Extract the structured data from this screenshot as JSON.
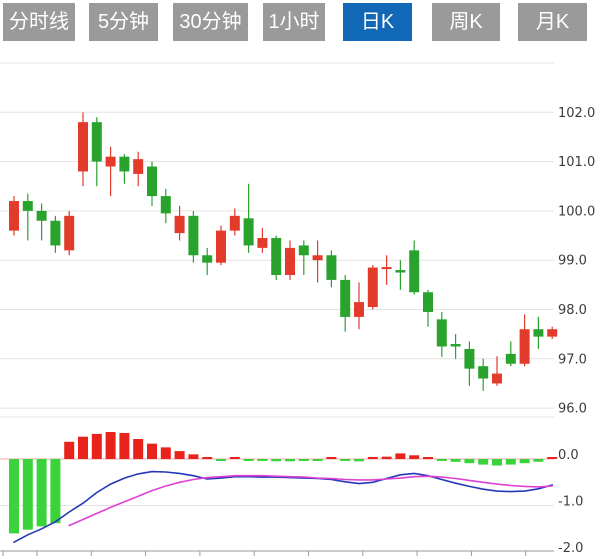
{
  "toolbar": {
    "tabs": [
      {
        "label": "分时线",
        "active": false
      },
      {
        "label": "5分钟",
        "active": false
      },
      {
        "label": "30分钟",
        "active": false
      },
      {
        "label": "1小时",
        "active": false
      },
      {
        "label": "日K",
        "active": true
      },
      {
        "label": "周K",
        "active": false
      },
      {
        "label": "月K",
        "active": false
      }
    ]
  },
  "colors": {
    "candle_up": "#e23b2c",
    "candle_down": "#2aa22e",
    "macd_up": "#e8231c",
    "macd_down": "#3bd33b",
    "dif_line": "#2438b8",
    "dea_line": "#de41d4",
    "grid": "#e3e3e3",
    "zero_line": "#f0aaaa",
    "axis": "#999999",
    "label": "#3c3c3c",
    "tab_bg": "#9a9a9a",
    "tab_active_bg": "#1068b7",
    "tab_text": "#ffffff"
  },
  "chart_data": {
    "type": "candlestick",
    "convention": "red=up, green=down",
    "x_count": 40,
    "price_panel": {
      "ylim": [
        95.9,
        103.1
      ],
      "grid": true,
      "gridline_values": [
        103,
        102,
        101,
        100,
        99,
        98,
        97,
        96
      ],
      "tick_labels": [
        "102.0",
        "101.0",
        "100.0",
        "99.0",
        "98.0",
        "97.0",
        "96.0"
      ],
      "tick_values": [
        102,
        101,
        100,
        99,
        98,
        97,
        96
      ],
      "legend_position": "none"
    },
    "macd_panel": {
      "ylim": [
        -2.1,
        0.7
      ],
      "tick_labels": [
        "0.0",
        "-1.0",
        "-2.0"
      ],
      "tick_values": [
        0,
        -1,
        -2
      ]
    },
    "candles_ohlc": [
      [
        99.6,
        100.3,
        99.5,
        100.2
      ],
      [
        100.2,
        100.35,
        99.4,
        100.0
      ],
      [
        100.0,
        100.15,
        99.4,
        99.8
      ],
      [
        99.8,
        99.9,
        99.15,
        99.3
      ],
      [
        99.2,
        100.0,
        99.1,
        99.9
      ],
      [
        100.8,
        102.0,
        100.5,
        101.8
      ],
      [
        101.8,
        101.9,
        100.5,
        101.0
      ],
      [
        100.9,
        101.3,
        100.3,
        101.1
      ],
      [
        101.1,
        101.15,
        100.55,
        100.8
      ],
      [
        100.75,
        101.2,
        100.5,
        101.05
      ],
      [
        100.9,
        101.0,
        100.1,
        100.3
      ],
      [
        100.3,
        100.45,
        99.75,
        99.95
      ],
      [
        99.55,
        100.1,
        99.4,
        99.9
      ],
      [
        99.9,
        100.0,
        98.95,
        99.1
      ],
      [
        99.1,
        99.25,
        98.7,
        98.95
      ],
      [
        98.95,
        99.7,
        98.9,
        99.6
      ],
      [
        99.6,
        100.05,
        99.5,
        99.9
      ],
      [
        99.85,
        100.55,
        99.15,
        99.3
      ],
      [
        99.25,
        99.65,
        99.15,
        99.45
      ],
      [
        99.45,
        99.5,
        98.6,
        98.7
      ],
      [
        98.7,
        99.4,
        98.6,
        99.25
      ],
      [
        99.3,
        99.4,
        98.7,
        99.1
      ],
      [
        99.0,
        99.4,
        98.55,
        99.1
      ],
      [
        99.1,
        99.2,
        98.45,
        98.6
      ],
      [
        98.6,
        98.7,
        97.55,
        97.85
      ],
      [
        97.85,
        98.55,
        97.6,
        98.15
      ],
      [
        98.05,
        98.9,
        98.0,
        98.85
      ],
      [
        98.82,
        99.1,
        98.5,
        98.86
      ],
      [
        98.8,
        99.0,
        98.4,
        98.75
      ],
      [
        99.2,
        99.4,
        98.3,
        98.35
      ],
      [
        98.35,
        98.4,
        97.65,
        97.95
      ],
      [
        97.8,
        97.95,
        97.04,
        97.25
      ],
      [
        97.3,
        97.5,
        97.0,
        97.25
      ],
      [
        97.2,
        97.35,
        96.45,
        96.8
      ],
      [
        96.85,
        97.0,
        96.35,
        96.6
      ],
      [
        96.5,
        97.05,
        96.45,
        96.7
      ],
      [
        97.1,
        97.35,
        96.85,
        96.9
      ],
      [
        96.9,
        97.9,
        96.85,
        97.6
      ],
      [
        97.6,
        97.85,
        97.2,
        97.45
      ],
      [
        97.45,
        97.65,
        97.4,
        97.6
      ]
    ],
    "macd": {
      "histogram": [
        -1.6,
        -1.52,
        -1.45,
        -1.38,
        0.37,
        0.48,
        0.54,
        0.58,
        0.56,
        0.43,
        0.33,
        0.25,
        0.17,
        0.1,
        0.04,
        -0.03,
        0.02,
        -0.03,
        -0.04,
        -0.05,
        -0.05,
        -0.04,
        -0.03,
        0.03,
        -0.04,
        -0.05,
        0.02,
        0.05,
        0.12,
        0.08,
        0.03,
        -0.03,
        -0.06,
        -0.09,
        -0.12,
        -0.14,
        -0.12,
        -0.09,
        -0.06,
        0.03
      ],
      "dif": [
        -1.79,
        -1.63,
        -1.5,
        -1.35,
        -1.14,
        -0.95,
        -0.72,
        -0.54,
        -0.41,
        -0.32,
        -0.27,
        -0.28,
        -0.31,
        -0.36,
        -0.43,
        -0.41,
        -0.38,
        -0.38,
        -0.39,
        -0.39,
        -0.4,
        -0.41,
        -0.42,
        -0.44,
        -0.49,
        -0.53,
        -0.5,
        -0.42,
        -0.34,
        -0.31,
        -0.36,
        -0.44,
        -0.52,
        -0.59,
        -0.65,
        -0.69,
        -0.7,
        -0.69,
        -0.64,
        -0.56
      ],
      "dea": [
        null,
        null,
        null,
        null,
        -1.43,
        -1.3,
        -1.17,
        -1.04,
        -0.92,
        -0.8,
        -0.68,
        -0.58,
        -0.5,
        -0.44,
        -0.4,
        -0.38,
        -0.36,
        -0.36,
        -0.36,
        -0.37,
        -0.38,
        -0.39,
        -0.41,
        -0.42,
        -0.44,
        -0.45,
        -0.45,
        -0.43,
        -0.41,
        -0.38,
        -0.37,
        -0.39,
        -0.42,
        -0.46,
        -0.5,
        -0.54,
        -0.57,
        -0.59,
        -0.6,
        -0.58
      ]
    }
  }
}
